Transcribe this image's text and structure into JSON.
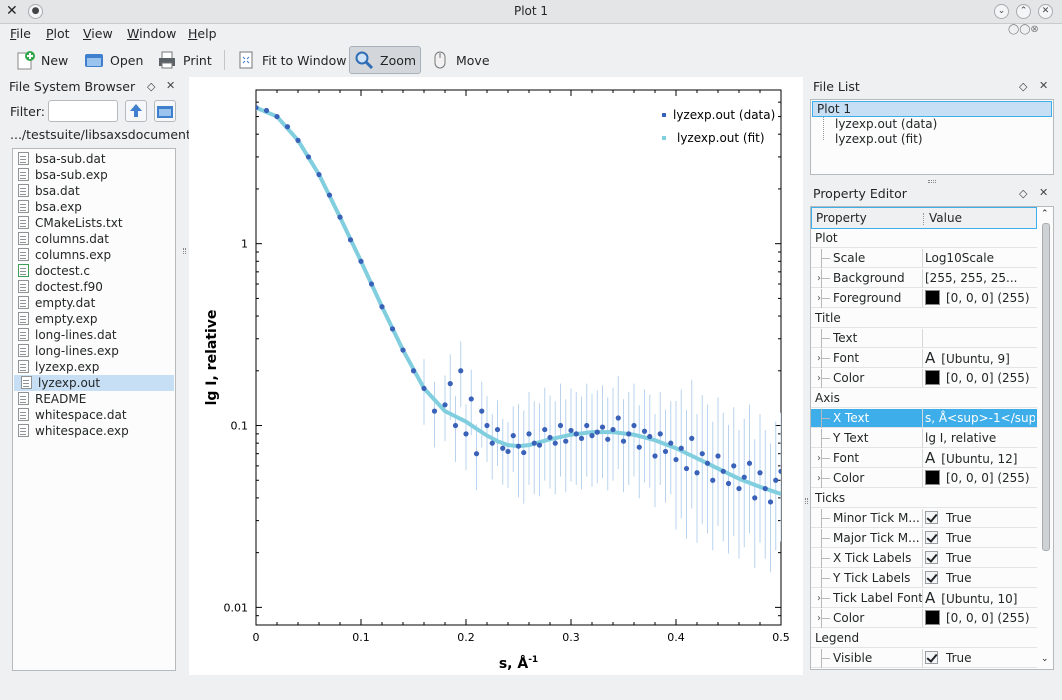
{
  "window": {
    "title": "Plot 1"
  },
  "menu": [
    {
      "label": "File",
      "ul": "F",
      "rest": "ile"
    },
    {
      "label": "Plot",
      "ul": "P",
      "rest": "lot"
    },
    {
      "label": "View",
      "ul": "V",
      "rest": "iew"
    },
    {
      "label": "Window",
      "ul": "W",
      "rest": "indow"
    },
    {
      "label": "Help",
      "ul": "H",
      "rest": "elp"
    }
  ],
  "toolbar": {
    "new_label": "New",
    "open_label": "Open",
    "print_label": "Print",
    "fit_label": "Fit to Window",
    "zoom_label": "Zoom",
    "move_label": "Move"
  },
  "file_browser": {
    "title": "File System Browser",
    "filter_label": "Filter:",
    "filter_value": "",
    "path": ".../testsuite/libsaxsdocument",
    "files": [
      "bsa-sub.dat",
      "bsa-sub.exp",
      "bsa.dat",
      "bsa.exp",
      "CMakeLists.txt",
      "columns.dat",
      "columns.exp",
      "doctest.c",
      "doctest.f90",
      "empty.dat",
      "empty.exp",
      "long-lines.dat",
      "long-lines.exp",
      "lyzexp.exp",
      "lyzexp.out",
      "README",
      "whitespace.dat",
      "whitespace.exp"
    ],
    "selected": "lyzexp.out"
  },
  "file_list": {
    "title": "File List",
    "root": "Plot 1",
    "children": [
      "lyzexp.out (data)",
      "lyzexp.out (fit)"
    ]
  },
  "property_editor": {
    "title": "Property Editor",
    "col_property": "Property",
    "col_value": "Value",
    "rows": [
      {
        "type": "cat",
        "name": "Plot"
      },
      {
        "name": "Scale",
        "value": "Log10Scale"
      },
      {
        "name": "Background",
        "value": "[255, 255, 25...",
        "expand": true
      },
      {
        "name": "Foreground",
        "value": "[0, 0, 0] (255)",
        "expand": true,
        "swatch": "#000000"
      },
      {
        "type": "cat",
        "name": "Title"
      },
      {
        "name": "Text",
        "value": ""
      },
      {
        "name": "Font",
        "value": "[Ubuntu, 9]",
        "expand": true,
        "fontglyph": "A"
      },
      {
        "name": "Color",
        "value": "[0, 0, 0] (255)",
        "expand": true,
        "swatch": "#000000"
      },
      {
        "type": "cat",
        "name": "Axis"
      },
      {
        "name": "X Text",
        "value": "s, Å<sup>-1</sup>",
        "selected": true
      },
      {
        "name": "Y Text",
        "value": "lg I, relative"
      },
      {
        "name": "Font",
        "value": "[Ubuntu, 12]",
        "expand": true,
        "fontglyph": "A"
      },
      {
        "name": "Color",
        "value": "[0, 0, 0] (255)",
        "expand": true,
        "swatch": "#000000"
      },
      {
        "type": "cat",
        "name": "Ticks"
      },
      {
        "name": "Minor Tick M...",
        "value": "True",
        "check": true
      },
      {
        "name": "Major Tick M...",
        "value": "True",
        "check": true
      },
      {
        "name": "X Tick Labels",
        "value": "True",
        "check": true
      },
      {
        "name": "Y Tick Labels",
        "value": "True",
        "check": true
      },
      {
        "name": "Tick Label Font",
        "value": "[Ubuntu, 10]",
        "expand": true,
        "fontglyph": "A"
      },
      {
        "name": "Color",
        "value": "[0, 0, 0] (255)",
        "expand": true,
        "swatch": "#000000"
      },
      {
        "type": "cat",
        "name": "Legend"
      },
      {
        "name": "Visible",
        "value": "True",
        "check": true
      }
    ]
  },
  "colors": {
    "data": "#3a62b8",
    "fit": "#80cede",
    "errorbar": "#b9d3ef",
    "selection": "#3daee9"
  },
  "chart_data": {
    "type": "scatter",
    "xlabel": "s, Å",
    "xlabel_sup": "-1",
    "ylabel": "lg I, relative",
    "xlim": [
      0,
      0.5
    ],
    "ylim": [
      0.008,
      7
    ],
    "yscale": "log",
    "x_ticks": [
      "0",
      "0.1",
      "0.2",
      "0.3",
      "0.4",
      "0.5"
    ],
    "y_ticks": [
      "0.01",
      "0.1",
      "1"
    ],
    "legend_position": "top-right",
    "series": [
      {
        "name": "lyzexp.out (data)",
        "style": "points-with-errorbars",
        "x": [
          0.0,
          0.01,
          0.02,
          0.03,
          0.04,
          0.05,
          0.06,
          0.07,
          0.08,
          0.09,
          0.1,
          0.11,
          0.12,
          0.13,
          0.14,
          0.15,
          0.16,
          0.17,
          0.18,
          0.185,
          0.19,
          0.195,
          0.2,
          0.205,
          0.21,
          0.215,
          0.22,
          0.225,
          0.23,
          0.235,
          0.24,
          0.245,
          0.25,
          0.255,
          0.26,
          0.265,
          0.27,
          0.275,
          0.28,
          0.285,
          0.29,
          0.295,
          0.3,
          0.305,
          0.31,
          0.315,
          0.32,
          0.325,
          0.33,
          0.335,
          0.34,
          0.345,
          0.35,
          0.355,
          0.36,
          0.365,
          0.37,
          0.375,
          0.38,
          0.385,
          0.39,
          0.395,
          0.4,
          0.405,
          0.41,
          0.415,
          0.42,
          0.425,
          0.43,
          0.435,
          0.44,
          0.445,
          0.45,
          0.455,
          0.46,
          0.465,
          0.47,
          0.475,
          0.48,
          0.485,
          0.49,
          0.495,
          0.5
        ],
        "y": [
          5.6,
          5.4,
          5.0,
          4.4,
          3.7,
          3.0,
          2.4,
          1.85,
          1.4,
          1.05,
          0.8,
          0.6,
          0.45,
          0.34,
          0.26,
          0.2,
          0.16,
          0.12,
          0.13,
          0.17,
          0.1,
          0.2,
          0.09,
          0.14,
          0.07,
          0.12,
          0.1,
          0.08,
          0.095,
          0.075,
          0.072,
          0.088,
          0.077,
          0.071,
          0.09,
          0.08,
          0.078,
          0.095,
          0.086,
          0.08,
          0.1,
          0.082,
          0.094,
          0.09,
          0.085,
          0.1,
          0.088,
          0.092,
          0.098,
          0.084,
          0.095,
          0.11,
          0.082,
          0.09,
          0.1,
          0.076,
          0.093,
          0.087,
          0.068,
          0.09,
          0.072,
          0.08,
          0.065,
          0.075,
          0.058,
          0.085,
          0.055,
          0.07,
          0.062,
          0.05,
          0.068,
          0.056,
          0.048,
          0.06,
          0.045,
          0.052,
          0.062,
          0.04,
          0.055,
          0.045,
          0.038,
          0.05,
          0.056
        ]
      },
      {
        "name": "lyzexp.out (fit)",
        "style": "thick-line",
        "x": [
          0.0,
          0.02,
          0.04,
          0.06,
          0.08,
          0.1,
          0.12,
          0.14,
          0.16,
          0.18,
          0.2,
          0.21,
          0.22,
          0.23,
          0.24,
          0.25,
          0.26,
          0.27,
          0.28,
          0.3,
          0.32,
          0.34,
          0.36,
          0.38,
          0.4,
          0.42,
          0.44,
          0.46,
          0.48,
          0.5
        ],
        "y": [
          5.6,
          5.0,
          3.7,
          2.4,
          1.4,
          0.8,
          0.45,
          0.26,
          0.16,
          0.12,
          0.105,
          0.096,
          0.088,
          0.082,
          0.078,
          0.077,
          0.078,
          0.081,
          0.084,
          0.089,
          0.092,
          0.092,
          0.089,
          0.083,
          0.075,
          0.066,
          0.058,
          0.051,
          0.046,
          0.042
        ]
      }
    ]
  }
}
